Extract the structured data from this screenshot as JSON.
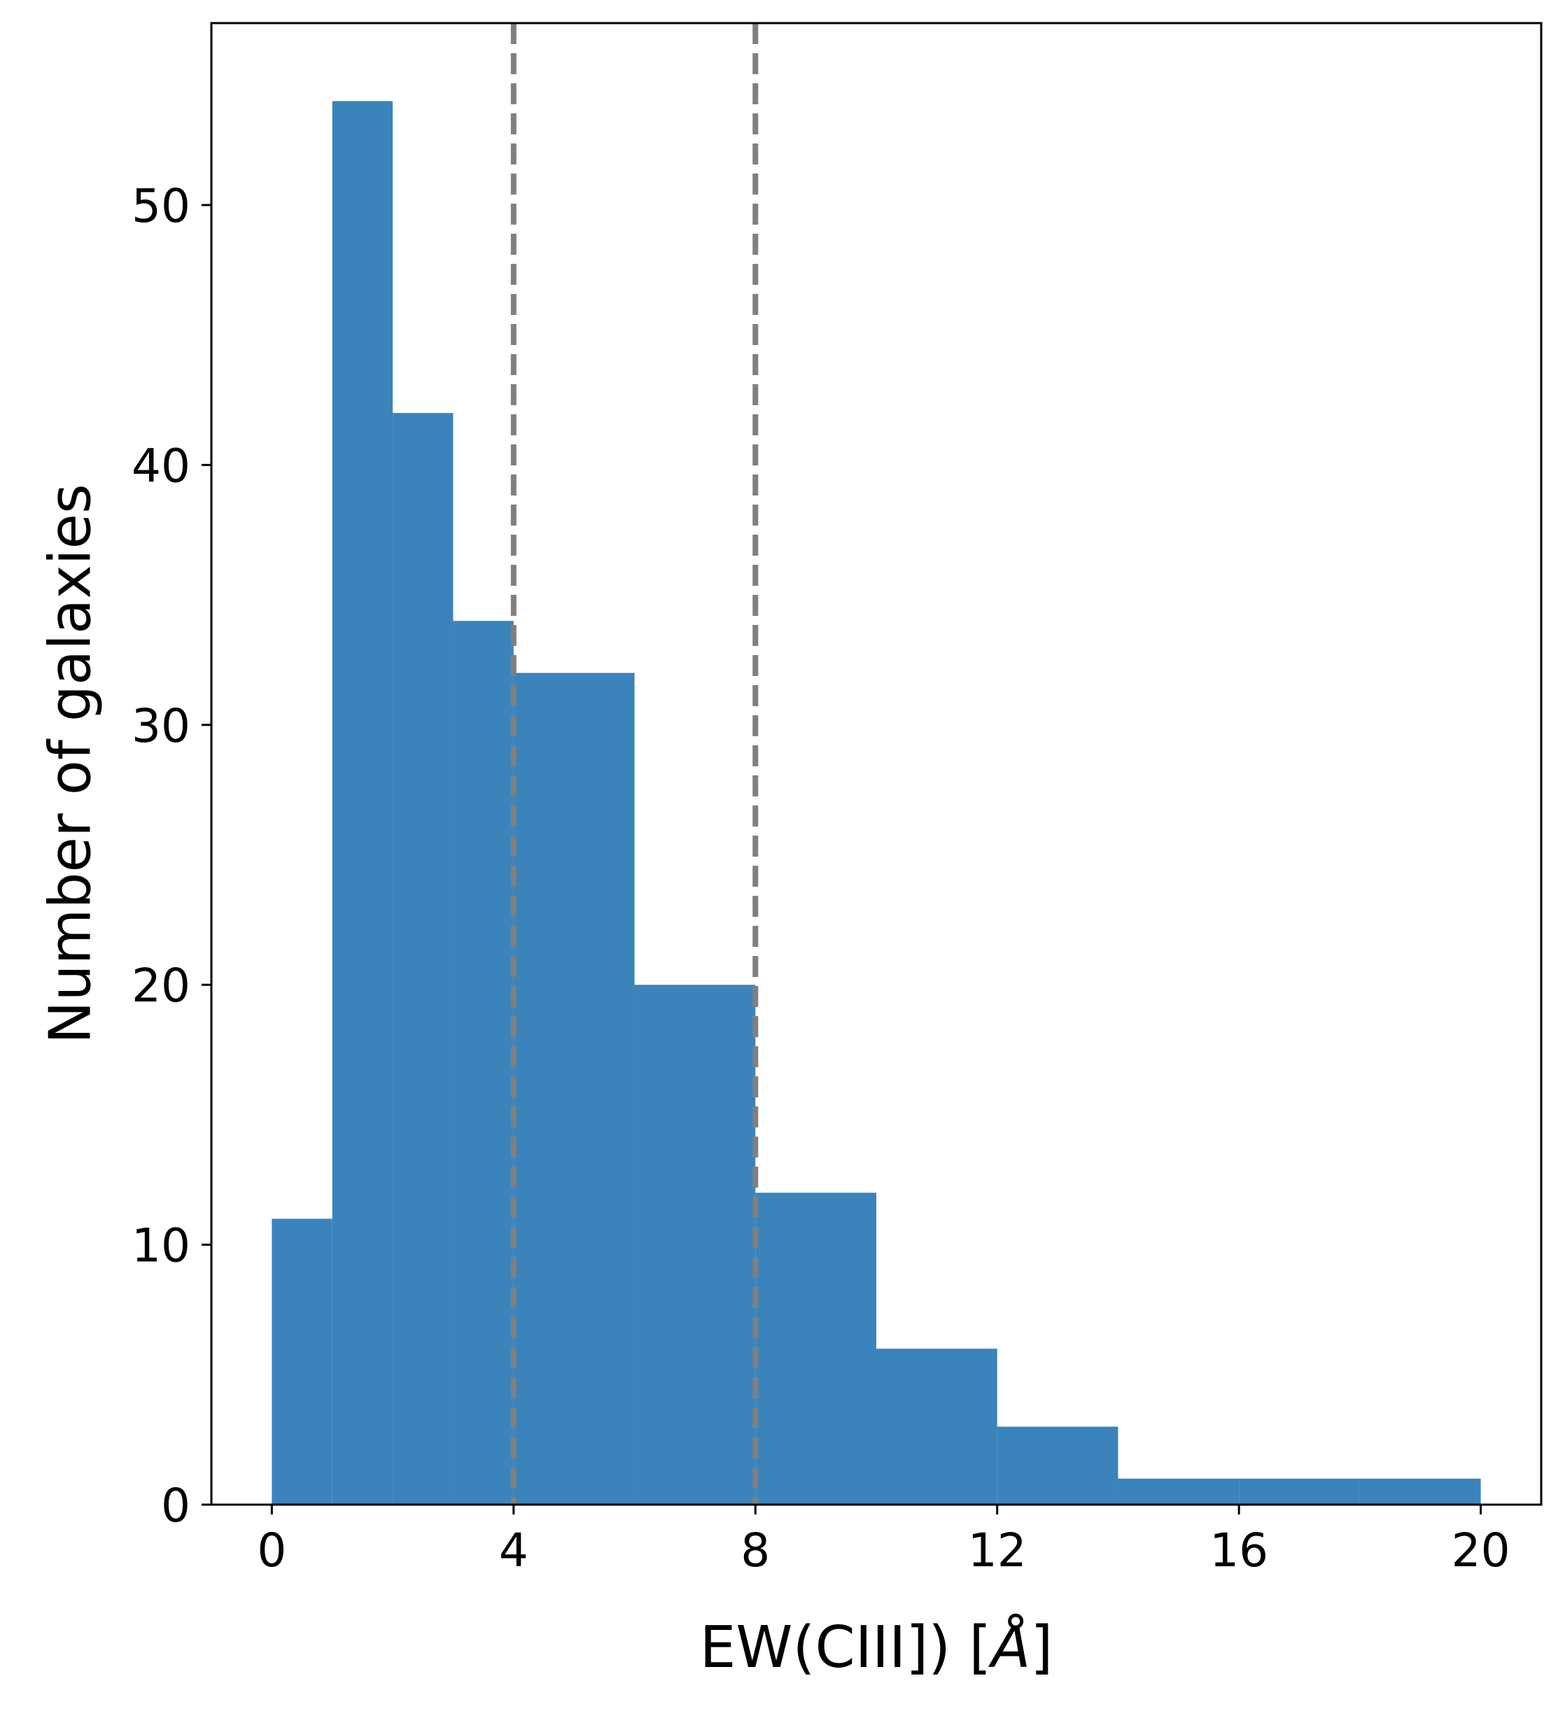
{
  "chart_data": {
    "type": "bar",
    "title": "",
    "xlabel_prefix": "EW(CIII]) [",
    "xlabel_unit": "Å",
    "xlabel_suffix": "]",
    "ylabel": "Number of galaxies",
    "bin_edges": [
      0,
      1,
      2,
      3,
      4,
      6,
      8,
      10,
      12,
      14,
      16,
      18,
      20
    ],
    "values": [
      11,
      54,
      42,
      34,
      32,
      20,
      12,
      6,
      3,
      1,
      1,
      1
    ],
    "xlim": [
      -1,
      21
    ],
    "ylim": [
      0,
      57
    ],
    "xticks": [
      0,
      4,
      8,
      12,
      16,
      20
    ],
    "yticks": [
      0,
      10,
      20,
      30,
      40,
      50
    ],
    "vlines": [
      4,
      8
    ],
    "bar_color": "#3a84bb",
    "vline_color": "#808080",
    "grid": false,
    "legend": "none"
  }
}
